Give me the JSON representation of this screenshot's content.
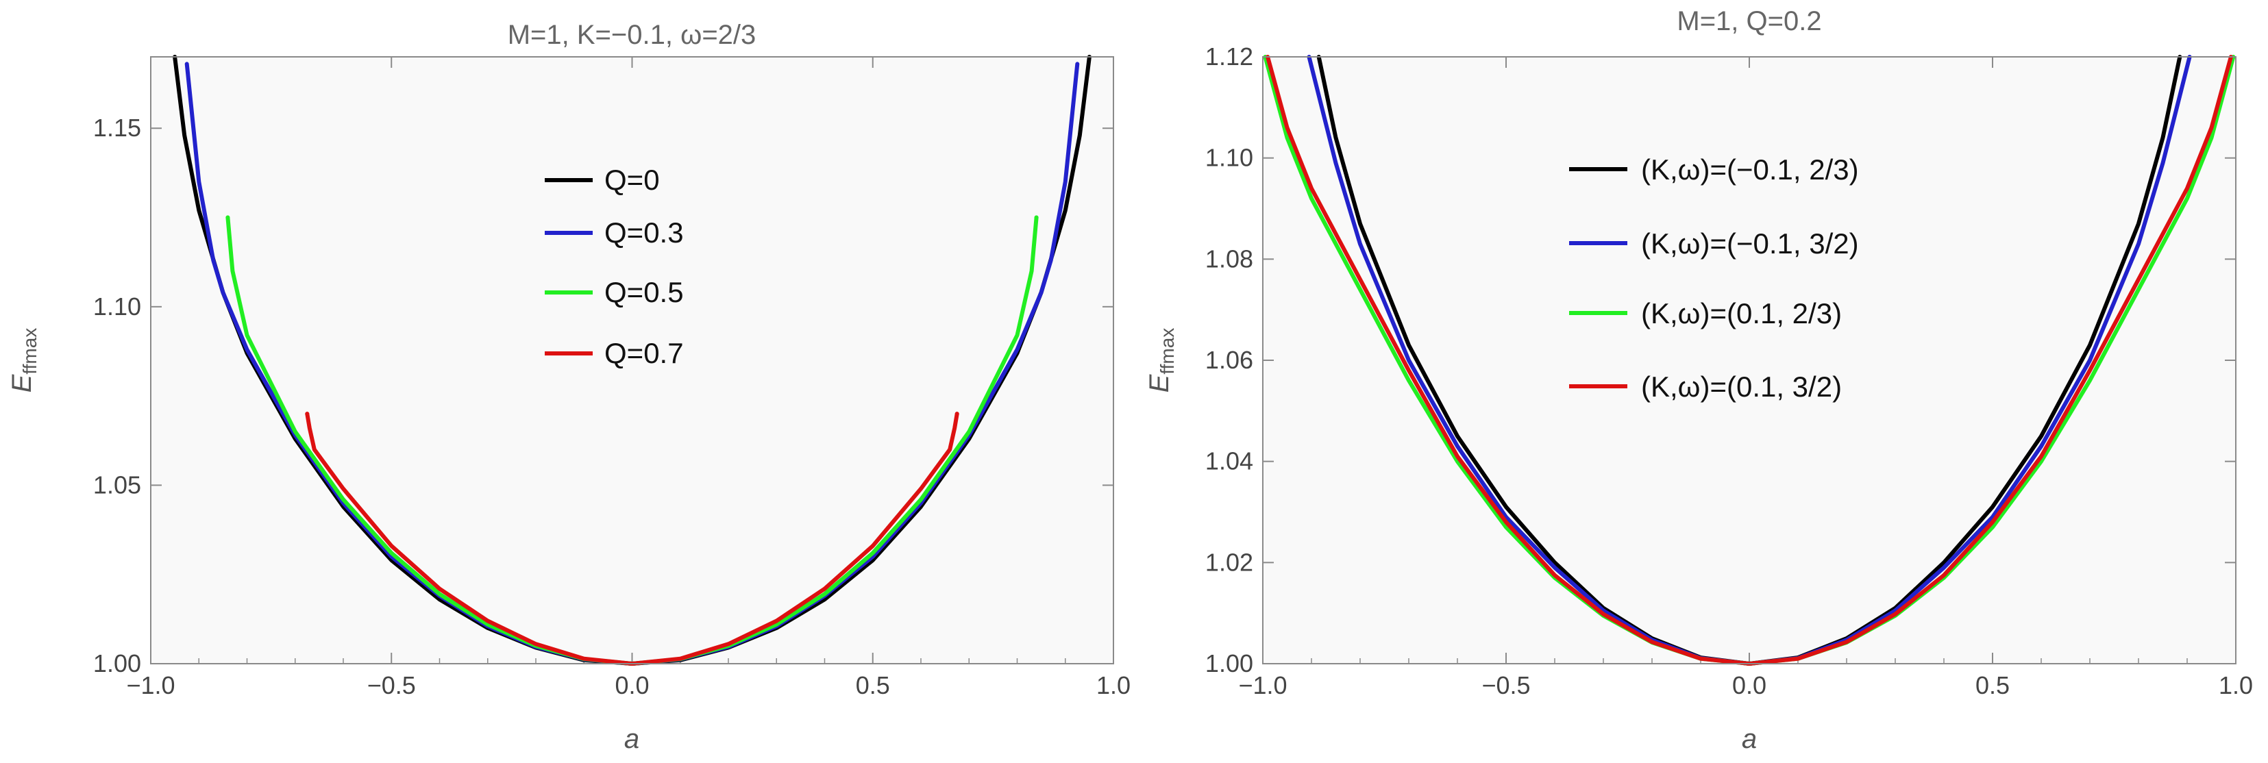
{
  "chart_data": [
    {
      "type": "line",
      "title": "M=1, K=−0.1, ω=2/3",
      "xlabel": "a",
      "ylabel": "E_ffmax",
      "ylabel_main": "E",
      "ylabel_sub": "ffmax",
      "xlim": [
        -1.0,
        1.0
      ],
      "ylim": [
        1.0,
        1.17
      ],
      "xticks": [
        -1.0,
        -0.5,
        0.0,
        0.5,
        1.0
      ],
      "xtick_labels": [
        "−1.0",
        "−0.5",
        "0.0",
        "0.5",
        "1.0"
      ],
      "yticks": [
        1.0,
        1.05,
        1.1,
        1.15
      ],
      "ytick_labels": [
        "1.00",
        "1.05",
        "1.10",
        "1.15"
      ],
      "legend_position": "center",
      "grid": false,
      "series": [
        {
          "name": "Q=0",
          "color": "#000000",
          "x": [
            -0.95,
            -0.93,
            -0.9,
            -0.85,
            -0.8,
            -0.7,
            -0.6,
            -0.5,
            -0.4,
            -0.3,
            -0.2,
            -0.1,
            0.0,
            0.1,
            0.2,
            0.3,
            0.4,
            0.5,
            0.6,
            0.7,
            0.8,
            0.85,
            0.9,
            0.93,
            0.95
          ],
          "y": [
            1.17,
            1.148,
            1.127,
            1.104,
            1.087,
            1.063,
            1.044,
            1.029,
            1.018,
            1.01,
            1.0045,
            1.001,
            1.0,
            1.001,
            1.0045,
            1.01,
            1.018,
            1.029,
            1.044,
            1.063,
            1.087,
            1.104,
            1.127,
            1.148,
            1.17
          ]
        },
        {
          "name": "Q=0.3",
          "color": "#2222cc",
          "x": [
            -0.925,
            -0.9,
            -0.87,
            -0.85,
            -0.8,
            -0.7,
            -0.6,
            -0.5,
            -0.4,
            -0.3,
            -0.2,
            -0.1,
            0.0,
            0.1,
            0.2,
            0.3,
            0.4,
            0.5,
            0.6,
            0.7,
            0.8,
            0.85,
            0.87,
            0.9,
            0.925
          ],
          "y": [
            1.168,
            1.135,
            1.113,
            1.104,
            1.088,
            1.064,
            1.045,
            1.03,
            1.019,
            1.0105,
            1.0047,
            1.0012,
            1.0,
            1.0012,
            1.0047,
            1.0105,
            1.019,
            1.03,
            1.045,
            1.064,
            1.088,
            1.104,
            1.113,
            1.135,
            1.168
          ]
        },
        {
          "name": "Q=0.5",
          "color": "#22ee22",
          "x": [
            -0.84,
            -0.83,
            -0.8,
            -0.7,
            -0.6,
            -0.5,
            -0.4,
            -0.3,
            -0.2,
            -0.1,
            0.0,
            0.1,
            0.2,
            0.3,
            0.4,
            0.5,
            0.6,
            0.7,
            0.8,
            0.83,
            0.84
          ],
          "y": [
            1.125,
            1.11,
            1.092,
            1.065,
            1.046,
            1.031,
            1.0195,
            1.011,
            1.005,
            1.0013,
            1.0,
            1.0013,
            1.005,
            1.011,
            1.0195,
            1.031,
            1.046,
            1.065,
            1.092,
            1.11,
            1.125
          ],
          "endpoints": [
            [
              -0.84,
              1.125
            ],
            [
              0.84,
              1.125
            ]
          ]
        },
        {
          "name": "Q=0.7",
          "color": "#dd1111",
          "x": [
            -0.675,
            -0.67,
            -0.66,
            -0.6,
            -0.5,
            -0.4,
            -0.3,
            -0.2,
            -0.1,
            0.0,
            0.1,
            0.2,
            0.3,
            0.4,
            0.5,
            0.6,
            0.66,
            0.67,
            0.675
          ],
          "y": [
            1.07,
            1.066,
            1.06,
            1.049,
            1.033,
            1.021,
            1.012,
            1.0055,
            1.0014,
            1.0,
            1.0014,
            1.0055,
            1.012,
            1.021,
            1.033,
            1.049,
            1.06,
            1.066,
            1.07
          ],
          "endpoints": [
            [
              -0.675,
              1.07
            ],
            [
              0.675,
              1.07
            ]
          ]
        }
      ]
    },
    {
      "type": "line",
      "title": "M=1, Q=0.2",
      "xlabel": "a",
      "ylabel": "E_ffmax",
      "ylabel_main": "E",
      "ylabel_sub": "ffmax",
      "xlim": [
        -1.0,
        1.0
      ],
      "ylim": [
        1.0,
        1.12
      ],
      "xticks": [
        -1.0,
        -0.5,
        0.0,
        0.5,
        1.0
      ],
      "xtick_labels": [
        "−1.0",
        "−0.5",
        "0.0",
        "0.5",
        "1.0"
      ],
      "yticks": [
        1.0,
        1.02,
        1.04,
        1.06,
        1.08,
        1.1,
        1.12
      ],
      "ytick_labels": [
        "1.00",
        "1.02",
        "1.04",
        "1.06",
        "1.08",
        "1.10",
        "1.12"
      ],
      "legend_position": "center",
      "grid": false,
      "series": [
        {
          "name": "(K,ω)=(−0.1, 2/3)",
          "color": "#000000",
          "x": [
            -0.885,
            -0.85,
            -0.8,
            -0.7,
            -0.6,
            -0.5,
            -0.4,
            -0.3,
            -0.2,
            -0.1,
            0.0,
            0.1,
            0.2,
            0.3,
            0.4,
            0.5,
            0.6,
            0.7,
            0.8,
            0.85,
            0.885
          ],
          "y": [
            1.12,
            1.104,
            1.087,
            1.063,
            1.045,
            1.031,
            1.02,
            1.011,
            1.005,
            1.0012,
            1.0,
            1.0012,
            1.005,
            1.011,
            1.02,
            1.031,
            1.045,
            1.063,
            1.087,
            1.104,
            1.12
          ]
        },
        {
          "name": "(K,ω)=(−0.1, 3/2)",
          "color": "#2222cc",
          "x": [
            -0.905,
            -0.85,
            -0.8,
            -0.7,
            -0.6,
            -0.5,
            -0.4,
            -0.3,
            -0.2,
            -0.1,
            0.0,
            0.1,
            0.2,
            0.3,
            0.4,
            0.5,
            0.6,
            0.7,
            0.8,
            0.85,
            0.905
          ],
          "y": [
            1.12,
            1.099,
            1.083,
            1.06,
            1.043,
            1.029,
            1.019,
            1.0105,
            1.0047,
            1.0011,
            1.0,
            1.0011,
            1.0047,
            1.0105,
            1.019,
            1.029,
            1.043,
            1.06,
            1.083,
            1.099,
            1.12
          ]
        },
        {
          "name": "(K,ω)=(0.1, 2/3)",
          "color": "#22ee22",
          "x": [
            -0.995,
            -0.95,
            -0.9,
            -0.8,
            -0.7,
            -0.6,
            -0.5,
            -0.4,
            -0.3,
            -0.2,
            -0.1,
            0.0,
            0.1,
            0.2,
            0.3,
            0.4,
            0.5,
            0.6,
            0.7,
            0.8,
            0.9,
            0.95,
            0.995
          ],
          "y": [
            1.12,
            1.104,
            1.092,
            1.074,
            1.056,
            1.04,
            1.027,
            1.017,
            1.0095,
            1.0042,
            1.001,
            1.0,
            1.001,
            1.0042,
            1.0095,
            1.017,
            1.027,
            1.04,
            1.056,
            1.074,
            1.092,
            1.104,
            1.12
          ]
        },
        {
          "name": "(K,ω)=(0.1, 3/2)",
          "color": "#dd1111",
          "x": [
            -0.99,
            -0.95,
            -0.9,
            -0.8,
            -0.7,
            -0.6,
            -0.5,
            -0.4,
            -0.3,
            -0.2,
            -0.1,
            0.0,
            0.1,
            0.2,
            0.3,
            0.4,
            0.5,
            0.6,
            0.7,
            0.8,
            0.9,
            0.95,
            0.99
          ],
          "y": [
            1.12,
            1.106,
            1.094,
            1.076,
            1.058,
            1.041,
            1.028,
            1.0175,
            1.0098,
            1.0043,
            1.001,
            1.0,
            1.001,
            1.0043,
            1.0098,
            1.0175,
            1.028,
            1.041,
            1.058,
            1.076,
            1.094,
            1.106,
            1.12
          ]
        }
      ]
    }
  ]
}
